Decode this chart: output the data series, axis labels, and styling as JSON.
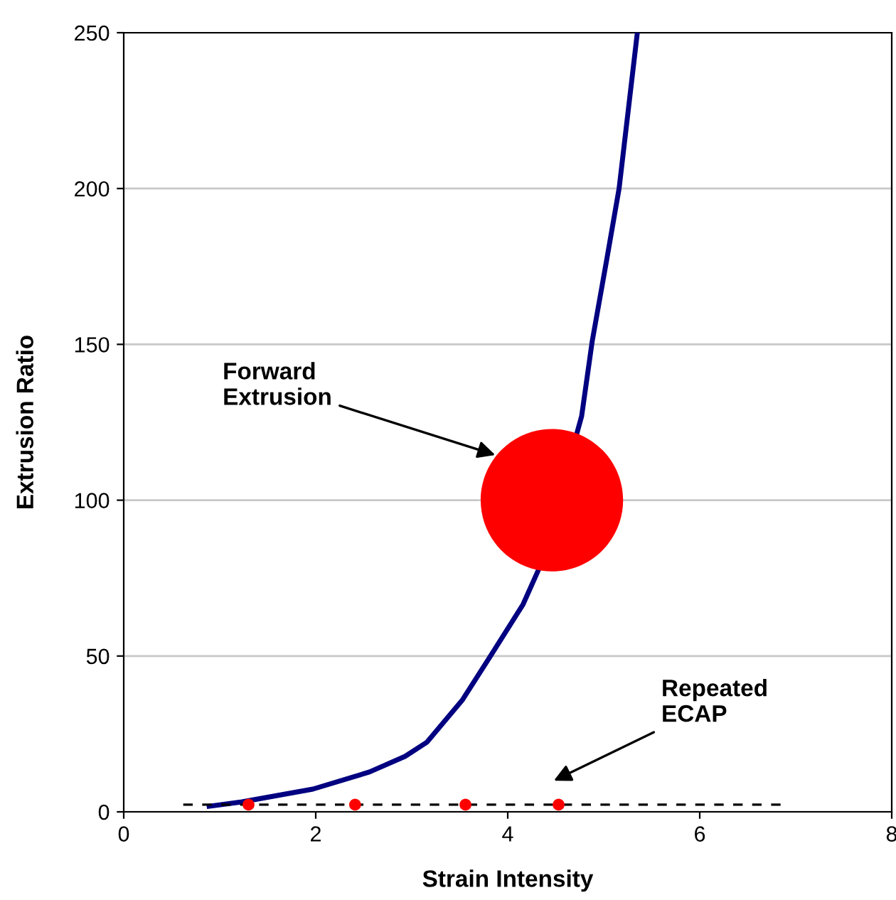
{
  "chart_data": {
    "type": "line",
    "xlabel": "Strain Intensity",
    "ylabel": "Extrusion Ratio",
    "xlim": [
      0,
      8
    ],
    "ylim": [
      0,
      250
    ],
    "xticks": [
      0,
      2,
      4,
      6,
      8
    ],
    "yticks": [
      0,
      50,
      100,
      150,
      200,
      250
    ],
    "grid": "y",
    "legend": false,
    "series": [
      {
        "color": "#000080",
        "line_style": "solid",
        "marker": "none",
        "x": [
          0.89,
          1.23,
          1.97,
          2.56,
          2.93,
          3.16,
          3.53,
          3.82,
          4.16,
          4.34,
          4.77,
          4.88,
          5.03,
          5.16,
          5.35
        ],
        "values": [
          1.8,
          3.2,
          7.3,
          12.8,
          17.8,
          22.4,
          36,
          50,
          66.6,
          79,
          127,
          151,
          177,
          200,
          250
        ]
      },
      {
        "color": "#000000",
        "line_style": "dashed",
        "marker": "none",
        "x": [
          0.62,
          6.9
        ],
        "values": [
          2.3,
          2.3
        ]
      },
      {
        "type": "scatter",
        "color": "#ff0000",
        "marker": "circle",
        "x": [
          1.3,
          2.41,
          3.56,
          4.53
        ],
        "values": [
          2.3,
          2.3,
          2.3,
          2.3
        ]
      },
      {
        "type": "bubble",
        "color": "#ff0000",
        "x": [
          4.46
        ],
        "values": [
          100
        ],
        "sizes": [
          1
        ]
      }
    ],
    "annotations": [
      {
        "text": "Forward\nExtrusion",
        "x": 3.87,
        "y": 114.5
      },
      "Repeated\nECAP"
    ]
  }
}
